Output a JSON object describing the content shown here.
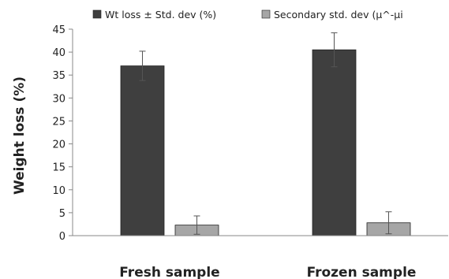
{
  "chart_data": {
    "type": "bar",
    "categories": [
      "Fresh sample",
      "Frozen sample"
    ],
    "series": [
      {
        "name": "Wt loss ± Std. dev (%)",
        "values": [
          37.0,
          40.5
        ],
        "errors": [
          3.2,
          3.7
        ],
        "color": "#3f3f3f"
      },
      {
        "name": "Secondary std. dev (µ^-µi",
        "values": [
          2.3,
          2.8
        ],
        "errors": [
          2.0,
          2.4
        ],
        "color": "#a6a6a6"
      }
    ],
    "ylabel": "Weight loss (%)",
    "xlabel": "",
    "ylim": [
      0,
      45
    ],
    "yticks": [
      0,
      5,
      10,
      15,
      20,
      25,
      30,
      35,
      40,
      45
    ],
    "grid": false,
    "legend_position": "top"
  }
}
